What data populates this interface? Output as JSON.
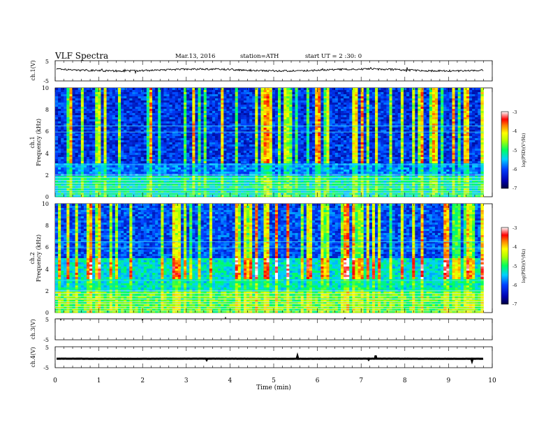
{
  "header": {
    "title": "VLF  Spectra",
    "date": "Mar.13, 2016",
    "station": "station=ATH",
    "start": "start  UT =  2 :30: 0"
  },
  "chart_data": {
    "type": "heatmap",
    "xlabel": "Time  (min)",
    "xlim": [
      0,
      10
    ],
    "xticks": [
      "0",
      "1",
      "2",
      "3",
      "4",
      "5",
      "6",
      "7",
      "8",
      "9",
      "10"
    ],
    "data_end_min": 9.8,
    "panels": [
      {
        "id": "ch1-wave",
        "kind": "waveform",
        "ylabel": "ch.1(V)",
        "ylim": [
          -5,
          5
        ],
        "yticks": [
          "5",
          "-5"
        ],
        "level": 0.4
      },
      {
        "id": "ch1-spec",
        "kind": "spectrogram",
        "ylabel_top": "ch.1",
        "ylabel": "Frequency  (kHz)",
        "ylim": [
          0,
          10
        ],
        "yticks": [
          "0",
          "2",
          "4",
          "6",
          "8",
          "10"
        ],
        "colorbar": {
          "label": "log(PSD)(V²/Hz)",
          "range": [
            -7,
            -3
          ],
          "ticks": [
            "-3",
            "-4",
            "-5",
            "-6",
            "-7"
          ]
        }
      },
      {
        "id": "ch2-spec",
        "kind": "spectrogram",
        "ylabel_top": "ch.2",
        "ylabel": "Frequency  (kHz)",
        "ylim": [
          0,
          10
        ],
        "yticks": [
          "0",
          "2",
          "4",
          "6",
          "8",
          "10"
        ],
        "colorbar": {
          "label": "log(PSD)(V²/Hz)",
          "range": [
            -7,
            -3
          ],
          "ticks": [
            "-3",
            "-4",
            "-5",
            "-6",
            "-7"
          ]
        }
      },
      {
        "id": "ch3-wave",
        "kind": "waveform",
        "ylabel": "ch.3(V)",
        "ylim": [
          -5,
          5
        ],
        "yticks": [
          "5",
          "-5"
        ],
        "level": 5.0
      },
      {
        "id": "ch4-wave",
        "kind": "waveform",
        "ylabel": "ch.4(V)",
        "ylim": [
          -5,
          5
        ],
        "yticks": [
          "5",
          "-5"
        ],
        "level": -0.7
      }
    ]
  }
}
